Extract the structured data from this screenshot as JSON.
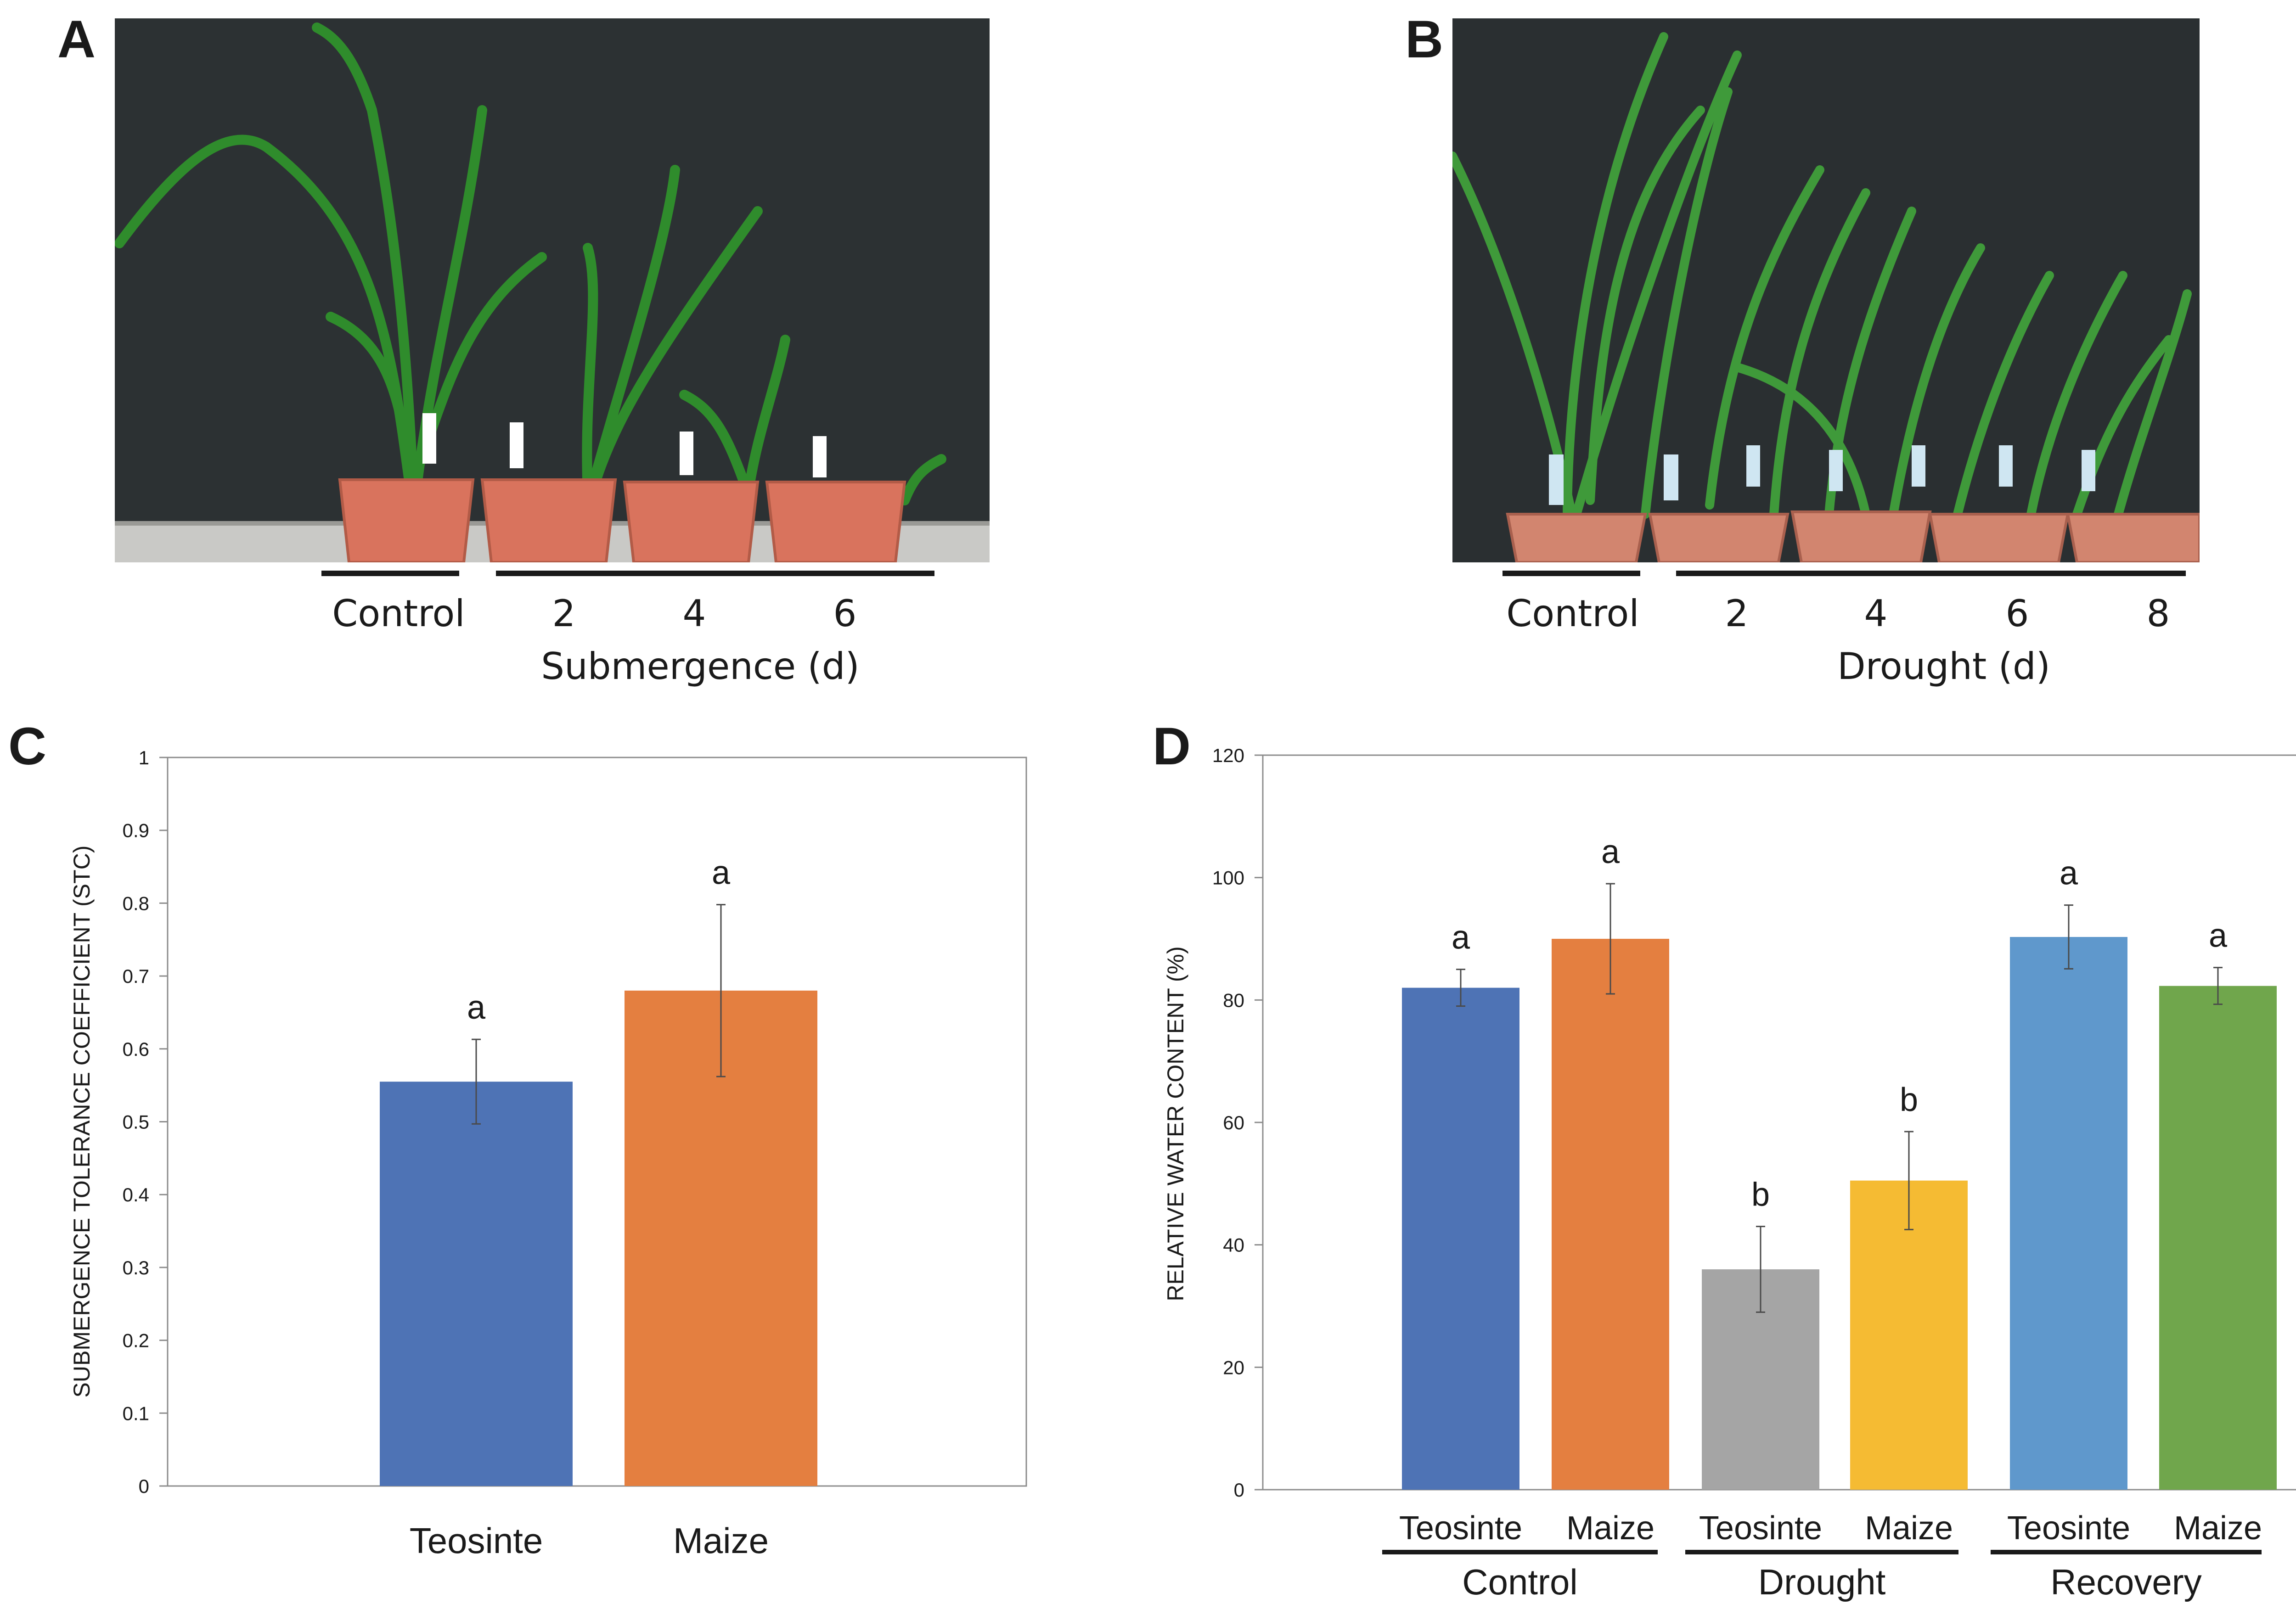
{
  "panels": {
    "a": "A",
    "b": "B",
    "c": "C",
    "d": "D"
  },
  "panel_a": {
    "labels": [
      "Control",
      "2",
      "4",
      "6"
    ],
    "axis_title": "Submergence (d)"
  },
  "panel_b": {
    "labels": [
      "Control",
      "2",
      "4",
      "6",
      "8"
    ],
    "axis_title": "Drought (d)"
  },
  "colors": {
    "blue": "#4e73b5",
    "orange": "#e47f40",
    "gray": "#a5a5a5",
    "yellow": "#f5bb33",
    "light_blue": "#5f98cc",
    "green": "#70a64c",
    "backdrop": "#2c3133",
    "pot": "#d9735d"
  },
  "chart_data": [
    {
      "id": "C",
      "type": "bar",
      "title": "",
      "xlabel": "",
      "ylabel": "SUBMERGENCE TOLERANCE COEFFICIENT (STC)",
      "ylim": [
        0,
        1
      ],
      "yticks": [
        "0",
        "0.1",
        "0.2",
        "0.3",
        "0.4",
        "0.5",
        "0.6",
        "0.7",
        "0.8",
        "0.9",
        "1"
      ],
      "categories": [
        "Teosinte",
        "Maize"
      ],
      "values": [
        0.555,
        0.68
      ],
      "errors": [
        0.058,
        0.118
      ],
      "letters": [
        "a",
        "a"
      ],
      "bar_colors": [
        "#4e73b5",
        "#e47f40"
      ],
      "grid": false
    },
    {
      "id": "D",
      "type": "bar",
      "title": "",
      "xlabel": "",
      "ylabel": "RELATIVE WATER CONTENT (%)",
      "ylim": [
        0,
        120
      ],
      "yticks": [
        "0",
        "20",
        "40",
        "60",
        "80",
        "100",
        "120"
      ],
      "categories": [
        "Teosinte",
        "Maize",
        "Teosinte",
        "Maize",
        "Teosinte",
        "Maize"
      ],
      "groups": [
        "Control",
        "Drought",
        "Recovery"
      ],
      "values": [
        82,
        90,
        36,
        50.5,
        90.3,
        82.3
      ],
      "errors": [
        3,
        9,
        7,
        8,
        5.2,
        3
      ],
      "letters": [
        "a",
        "a",
        "b",
        "b",
        "a",
        "a"
      ],
      "bar_colors": [
        "#4e73b5",
        "#e47f40",
        "#a5a5a5",
        "#f5bb33",
        "#5f98cc",
        "#70a64c"
      ],
      "grid": false
    }
  ]
}
